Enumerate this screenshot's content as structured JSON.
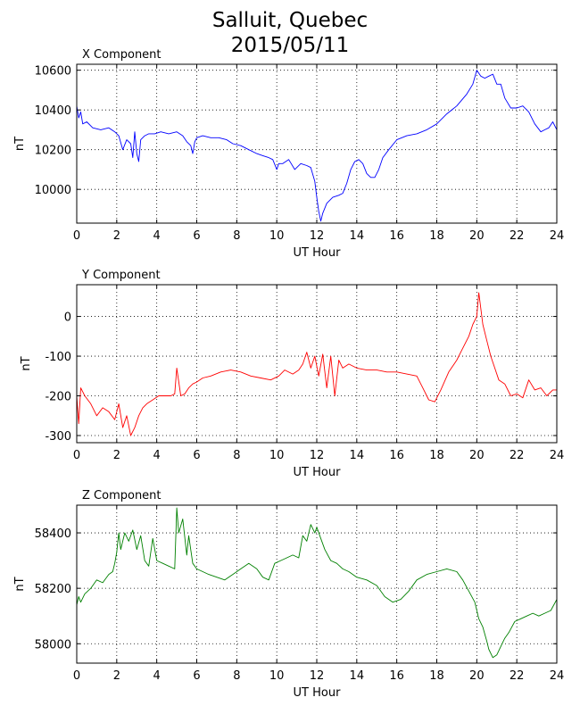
{
  "figure": {
    "title_line1": "Salluit, Quebec",
    "title_line2": "2015/05/11"
  },
  "chart_data": [
    {
      "type": "line",
      "title": "X Component",
      "xlabel": "UT Hour",
      "ylabel": "nT",
      "color": "#0000ff",
      "xlim": [
        0,
        24
      ],
      "ylim": [
        9830,
        10630
      ],
      "xticks": [
        0,
        2,
        4,
        6,
        8,
        10,
        12,
        14,
        16,
        18,
        20,
        22,
        24
      ],
      "yticks": [
        10000,
        10200,
        10400,
        10600
      ],
      "grid": true,
      "series": [
        {
          "x": [
            0,
            0.1,
            0.2,
            0.3,
            0.5,
            0.8,
            1.2,
            1.6,
            1.9,
            2.1,
            2.3,
            2.5,
            2.7,
            2.8,
            2.9,
            3.0,
            3.1,
            3.2,
            3.4,
            3.6,
            3.9,
            4.2,
            4.6,
            5.0,
            5.3,
            5.5,
            5.7,
            5.8,
            5.9,
            6.0,
            6.3,
            6.7,
            7.1,
            7.5,
            7.8,
            8.2,
            8.6,
            9.0,
            9.3,
            9.6,
            9.8,
            10.0,
            10.1,
            10.3,
            10.6,
            10.9,
            11.2,
            11.5,
            11.7,
            11.9,
            12.0,
            12.1,
            12.2,
            12.3,
            12.5,
            12.8,
            13.1,
            13.3,
            13.5,
            13.7,
            13.9,
            14.1,
            14.3,
            14.5,
            14.7,
            14.9,
            15.1,
            15.3,
            15.6,
            16.0,
            16.5,
            17.0,
            17.5,
            18.0,
            18.5,
            19.0,
            19.5,
            19.8,
            20.0,
            20.2,
            20.4,
            20.6,
            20.8,
            21.0,
            21.2,
            21.4,
            21.7,
            22.0,
            22.3,
            22.6,
            22.9,
            23.2,
            23.4,
            23.6,
            23.8,
            24.0
          ],
          "y": [
            10420,
            10360,
            10390,
            10330,
            10340,
            10310,
            10300,
            10310,
            10290,
            10270,
            10200,
            10250,
            10230,
            10160,
            10290,
            10180,
            10140,
            10250,
            10270,
            10280,
            10280,
            10290,
            10280,
            10290,
            10270,
            10240,
            10220,
            10180,
            10240,
            10260,
            10270,
            10260,
            10260,
            10250,
            10230,
            10220,
            10200,
            10180,
            10170,
            10160,
            10150,
            10100,
            10130,
            10130,
            10150,
            10100,
            10130,
            10120,
            10110,
            10040,
            9960,
            9890,
            9840,
            9880,
            9930,
            9960,
            9970,
            9980,
            10030,
            10100,
            10140,
            10150,
            10130,
            10080,
            10060,
            10060,
            10100,
            10160,
            10200,
            10250,
            10270,
            10280,
            10300,
            10330,
            10380,
            10420,
            10480,
            10530,
            10600,
            10570,
            10560,
            10570,
            10580,
            10530,
            10530,
            10460,
            10410,
            10410,
            10420,
            10390,
            10330,
            10290,
            10300,
            10310,
            10340,
            10300
          ]
        }
      ]
    },
    {
      "type": "line",
      "title": "Y Component",
      "xlabel": "UT Hour",
      "ylabel": "nT",
      "color": "#ff0000",
      "xlim": [
        0,
        24
      ],
      "ylim": [
        -318,
        80
      ],
      "xticks": [
        0,
        2,
        4,
        6,
        8,
        10,
        12,
        14,
        16,
        18,
        20,
        22,
        24
      ],
      "yticks": [
        -300,
        -200,
        -100,
        0
      ],
      "grid": true,
      "series": [
        {
          "x": [
            0,
            0.1,
            0.2,
            0.4,
            0.7,
            1.0,
            1.3,
            1.6,
            1.9,
            2.1,
            2.3,
            2.5,
            2.7,
            2.9,
            3.1,
            3.3,
            3.5,
            3.8,
            4.1,
            4.4,
            4.7,
            4.9,
            5.0,
            5.2,
            5.4,
            5.6,
            5.8,
            6.0,
            6.3,
            6.7,
            7.2,
            7.7,
            8.2,
            8.7,
            9.2,
            9.7,
            10.1,
            10.4,
            10.8,
            11.1,
            11.3,
            11.5,
            11.7,
            11.9,
            12.1,
            12.3,
            12.5,
            12.7,
            12.9,
            13.1,
            13.3,
            13.6,
            14.0,
            14.5,
            15.0,
            15.5,
            16.0,
            16.5,
            17.0,
            17.3,
            17.6,
            17.9,
            18.2,
            18.6,
            19.0,
            19.3,
            19.6,
            19.8,
            20.0,
            20.1,
            20.3,
            20.5,
            20.7,
            20.9,
            21.1,
            21.4,
            21.7,
            22.0,
            22.3,
            22.6,
            22.9,
            23.2,
            23.5,
            23.8,
            24.0
          ],
          "y": [
            -200,
            -270,
            -180,
            -200,
            -220,
            -250,
            -230,
            -240,
            -260,
            -220,
            -280,
            -250,
            -300,
            -280,
            -250,
            -230,
            -220,
            -210,
            -200,
            -200,
            -200,
            -195,
            -130,
            -200,
            -195,
            -180,
            -170,
            -165,
            -155,
            -150,
            -140,
            -135,
            -140,
            -150,
            -155,
            -160,
            -150,
            -135,
            -145,
            -135,
            -120,
            -90,
            -130,
            -100,
            -150,
            -95,
            -180,
            -100,
            -200,
            -110,
            -130,
            -120,
            -130,
            -135,
            -135,
            -140,
            -140,
            -145,
            -150,
            -180,
            -210,
            -215,
            -185,
            -140,
            -110,
            -80,
            -50,
            -20,
            0,
            60,
            -20,
            -60,
            -100,
            -130,
            -160,
            -170,
            -200,
            -195,
            -205,
            -160,
            -185,
            -180,
            -200,
            -185,
            -185
          ]
        }
      ]
    },
    {
      "type": "line",
      "title": "Z Component",
      "xlabel": "UT Hour",
      "ylabel": "nT",
      "color": "#008000",
      "xlim": [
        0,
        24
      ],
      "ylim": [
        57930,
        58500
      ],
      "xticks": [
        0,
        2,
        4,
        6,
        8,
        10,
        12,
        14,
        16,
        18,
        20,
        22,
        24
      ],
      "yticks": [
        58000,
        58200,
        58400
      ],
      "grid": true,
      "series": [
        {
          "x": [
            0,
            0.1,
            0.2,
            0.4,
            0.7,
            1.0,
            1.3,
            1.6,
            1.8,
            1.9,
            2.0,
            2.1,
            2.2,
            2.4,
            2.6,
            2.8,
            3.0,
            3.2,
            3.4,
            3.6,
            3.8,
            4.0,
            4.3,
            4.6,
            4.9,
            5.0,
            5.1,
            5.3,
            5.5,
            5.6,
            5.8,
            6.0,
            6.3,
            6.6,
            7.0,
            7.4,
            7.8,
            8.2,
            8.6,
            9.0,
            9.3,
            9.6,
            9.9,
            10.2,
            10.5,
            10.8,
            11.1,
            11.3,
            11.5,
            11.7,
            11.9,
            12.0,
            12.2,
            12.4,
            12.7,
            13.0,
            13.3,
            13.6,
            14.0,
            14.5,
            15.0,
            15.4,
            15.8,
            16.2,
            16.6,
            17.0,
            17.5,
            18.0,
            18.5,
            19.0,
            19.3,
            19.6,
            19.9,
            20.1,
            20.3,
            20.5,
            20.6,
            20.8,
            21.0,
            21.2,
            21.4,
            21.6,
            21.9,
            22.2,
            22.5,
            22.8,
            23.1,
            23.4,
            23.7,
            24.0
          ],
          "y": [
            58140,
            58170,
            58150,
            58180,
            58200,
            58230,
            58220,
            58250,
            58260,
            58290,
            58330,
            58400,
            58340,
            58400,
            58370,
            58410,
            58340,
            58390,
            58300,
            58280,
            58380,
            58300,
            58290,
            58280,
            58270,
            58490,
            58400,
            58450,
            58320,
            58390,
            58290,
            58270,
            58260,
            58250,
            58240,
            58230,
            58250,
            58270,
            58290,
            58270,
            58240,
            58230,
            58290,
            58300,
            58310,
            58320,
            58310,
            58390,
            58370,
            58430,
            58400,
            58420,
            58380,
            58340,
            58300,
            58290,
            58270,
            58260,
            58240,
            58230,
            58210,
            58170,
            58150,
            58160,
            58190,
            58230,
            58250,
            58260,
            58270,
            58260,
            58230,
            58190,
            58150,
            58090,
            58060,
            58010,
            57980,
            57950,
            57960,
            57990,
            58020,
            58040,
            58080,
            58090,
            58100,
            58110,
            58100,
            58110,
            58120,
            58160
          ]
        }
      ]
    }
  ]
}
